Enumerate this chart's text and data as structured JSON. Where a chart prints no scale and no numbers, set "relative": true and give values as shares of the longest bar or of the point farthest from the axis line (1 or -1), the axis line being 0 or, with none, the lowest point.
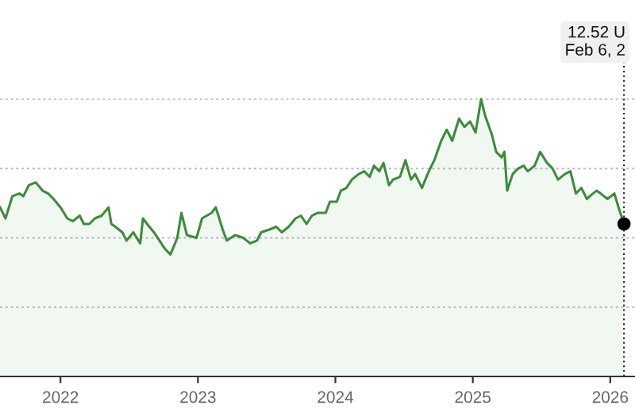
{
  "chart_data": {
    "type": "area",
    "relative": true,
    "grid": "y",
    "legend": false,
    "x": [
      2021.56,
      2021.6,
      2021.65,
      2021.7,
      2021.73,
      2021.77,
      2021.82,
      2021.87,
      2021.91,
      2021.95,
      2022.0,
      2022.05,
      2022.09,
      2022.14,
      2022.17,
      2022.21,
      2022.25,
      2022.3,
      2022.35,
      2022.37,
      2022.4,
      2022.45,
      2022.48,
      2022.53,
      2022.58,
      2022.6,
      2022.63,
      2022.68,
      2022.72,
      2022.76,
      2022.8,
      2022.85,
      2022.88,
      2022.92,
      2022.99,
      2023.03,
      2023.1,
      2023.13,
      2023.18,
      2023.21,
      2023.27,
      2023.33,
      2023.38,
      2023.43,
      2023.46,
      2023.52,
      2023.57,
      2023.61,
      2023.66,
      2023.71,
      2023.75,
      2023.79,
      2023.83,
      2023.87,
      2023.93,
      2023.96,
      2024.01,
      2024.04,
      2024.08,
      2024.12,
      2024.17,
      2024.21,
      2024.25,
      2024.28,
      2024.32,
      2024.35,
      2024.39,
      2024.42,
      2024.47,
      2024.51,
      2024.55,
      2024.58,
      2024.63,
      2024.68,
      2024.72,
      2024.77,
      2024.81,
      2024.85,
      2024.9,
      2024.94,
      2024.98,
      2025.02,
      2025.06,
      2025.09,
      2025.14,
      2025.17,
      2025.21,
      2025.23,
      2025.25,
      2025.29,
      2025.33,
      2025.37,
      2025.4,
      2025.45,
      2025.49,
      2025.54,
      2025.58,
      2025.62,
      2025.67,
      2025.71,
      2025.75,
      2025.79,
      2025.83,
      2025.85,
      2025.9,
      2025.93,
      2025.98,
      2026.03,
      2026.06,
      2026.1
    ],
    "series": [
      {
        "color": "#3f8a3f",
        "values": [
          0.61,
          0.57,
          0.65,
          0.66,
          0.65,
          0.69,
          0.7,
          0.67,
          0.66,
          0.64,
          0.61,
          0.57,
          0.56,
          0.58,
          0.55,
          0.55,
          0.57,
          0.58,
          0.61,
          0.55,
          0.54,
          0.52,
          0.49,
          0.52,
          0.48,
          0.57,
          0.55,
          0.52,
          0.49,
          0.46,
          0.44,
          0.5,
          0.59,
          0.51,
          0.5,
          0.57,
          0.59,
          0.61,
          0.53,
          0.49,
          0.51,
          0.5,
          0.48,
          0.49,
          0.52,
          0.53,
          0.54,
          0.52,
          0.54,
          0.57,
          0.58,
          0.55,
          0.58,
          0.59,
          0.59,
          0.63,
          0.63,
          0.67,
          0.68,
          0.71,
          0.73,
          0.74,
          0.72,
          0.76,
          0.74,
          0.77,
          0.69,
          0.71,
          0.72,
          0.78,
          0.71,
          0.73,
          0.68,
          0.74,
          0.78,
          0.85,
          0.89,
          0.85,
          0.93,
          0.9,
          0.92,
          0.88,
          1.0,
          0.94,
          0.87,
          0.81,
          0.79,
          0.81,
          0.67,
          0.73,
          0.75,
          0.76,
          0.74,
          0.76,
          0.81,
          0.77,
          0.75,
          0.71,
          0.73,
          0.74,
          0.66,
          0.68,
          0.64,
          0.65,
          0.67,
          0.66,
          0.64,
          0.66,
          0.61,
          0.55
        ]
      }
    ],
    "xlim": [
      2021.56,
      2026.18
    ],
    "xticks": [
      2022,
      2023,
      2024,
      2025,
      2026
    ],
    "ref_lines": [
      {
        "axis": "x",
        "value": 2026.1,
        "label": null,
        "color": "#333333",
        "line_style": "dotted"
      }
    ],
    "annotations": [
      "12.52 U\nFeb 6, 2"
    ]
  }
}
